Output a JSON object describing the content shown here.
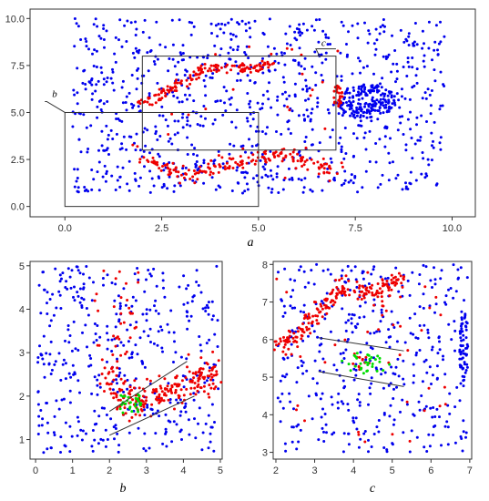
{
  "chart_data": [
    {
      "type": "scatter",
      "panel_label": "a",
      "xlim": [
        -0.9,
        10.6
      ],
      "ylim": [
        -0.55,
        10.5
      ],
      "x_ticks": [
        0.0,
        2.5,
        5.0,
        7.5,
        10.0
      ],
      "y_ticks": [
        0.0,
        2.5,
        5.0,
        7.5,
        10.0
      ],
      "x_tick_labels": [
        "0.0",
        "2.5",
        "5.0",
        "7.5",
        "10.0"
      ],
      "y_tick_labels": [
        "0.0",
        "2.5",
        "5.0",
        "7.5",
        "10.0"
      ],
      "grid": false,
      "colors": {
        "background_points": "#0000ee",
        "cluster_points": "#ee0000"
      },
      "regions": [
        {
          "label": "b",
          "x_range": [
            0,
            5
          ],
          "y_range": [
            0,
            5
          ]
        },
        {
          "label": "c",
          "x_range": [
            2,
            7
          ],
          "y_range": [
            3,
            8
          ]
        }
      ],
      "series": [
        {
          "color": "#0000ee",
          "n": 900,
          "shape": "uniform",
          "x_range": [
            0.2,
            9.8
          ],
          "y_range": [
            0.7,
            10.0
          ]
        },
        {
          "color": "#0000ee",
          "n": 170,
          "shape": "blob",
          "center": [
            7.8,
            5.6
          ],
          "radius": [
            0.75,
            0.9
          ]
        },
        {
          "color": "#ee0000",
          "n": 140,
          "shape": "curve",
          "path": [
            [
              1.8,
              5.4
            ],
            [
              2.4,
              5.8
            ],
            [
              3.0,
              6.6
            ],
            [
              3.6,
              7.3
            ],
            [
              4.2,
              7.4
            ],
            [
              4.8,
              7.3
            ],
            [
              5.3,
              7.7
            ]
          ],
          "spread": 0.15
        },
        {
          "color": "#ee0000",
          "n": 170,
          "shape": "curve",
          "path": [
            [
              1.9,
              2.5
            ],
            [
              2.5,
              2.2
            ],
            [
              3.0,
              1.8
            ],
            [
              3.6,
              1.9
            ],
            [
              4.3,
              2.3
            ],
            [
              5.0,
              2.6
            ],
            [
              5.8,
              2.7
            ],
            [
              6.5,
              2.3
            ],
            [
              6.9,
              1.8
            ]
          ],
          "spread": 0.2
        },
        {
          "color": "#ee0000",
          "n": 26,
          "shape": "blob",
          "center": [
            7.05,
            5.9
          ],
          "radius": [
            0.12,
            0.6
          ]
        },
        {
          "color": "#ee0000",
          "n": 30,
          "shape": "uniform",
          "x_range": [
            1.5,
            7.2
          ],
          "y_range": [
            1.0,
            8.5
          ]
        }
      ]
    },
    {
      "type": "scatter",
      "panel_label": "b",
      "xlim": [
        -0.15,
        5.05
      ],
      "ylim": [
        0.55,
        5.1
      ],
      "x_ticks": [
        0,
        1,
        2,
        3,
        4,
        5
      ],
      "y_ticks": [
        1,
        2,
        3,
        4,
        5
      ],
      "x_tick_labels": [
        "0",
        "1",
        "2",
        "3",
        "4",
        "5"
      ],
      "y_tick_labels": [
        "1",
        "2",
        "3",
        "4",
        "5"
      ],
      "grid": false,
      "colors": {
        "background_points": "#0000ee",
        "cluster_points": "#ee0000",
        "highlight_points": "#00dd00"
      },
      "guide_lines": [
        {
          "from": [
            2.0,
            1.65
          ],
          "to": [
            4.1,
            2.8
          ]
        },
        {
          "from": [
            2.0,
            1.1
          ],
          "to": [
            4.3,
            2.0
          ]
        }
      ],
      "series": [
        {
          "color": "#0000ee",
          "n": 420,
          "shape": "uniform",
          "x_range": [
            0.05,
            4.95
          ],
          "y_range": [
            0.7,
            5.0
          ]
        },
        {
          "color": "#ee0000",
          "n": 220,
          "shape": "curve",
          "path": [
            [
              1.9,
              2.6
            ],
            [
              2.4,
              2.0
            ],
            [
              3.0,
              1.9
            ],
            [
              3.6,
              2.1
            ],
            [
              4.3,
              2.4
            ],
            [
              4.9,
              2.5
            ]
          ],
          "spread": 0.22
        },
        {
          "color": "#ee0000",
          "n": 35,
          "shape": "uniform",
          "x_range": [
            1.6,
            2.8
          ],
          "y_range": [
            2.6,
            4.9
          ]
        },
        {
          "color": "#00dd00",
          "n": 28,
          "shape": "blob",
          "center": [
            2.6,
            1.85
          ],
          "radius": [
            0.4,
            0.3
          ]
        }
      ]
    },
    {
      "type": "scatter",
      "panel_label": "c",
      "xlim": [
        1.93,
        7.05
      ],
      "ylim": [
        2.82,
        8.08
      ],
      "x_ticks": [
        2,
        3,
        4,
        5,
        6,
        7
      ],
      "y_ticks": [
        3,
        4,
        5,
        6,
        7,
        8
      ],
      "x_tick_labels": [
        "2",
        "3",
        "4",
        "5",
        "6",
        "7"
      ],
      "y_tick_labels": [
        "3",
        "4",
        "5",
        "6",
        "7",
        "8"
      ],
      "grid": false,
      "colors": {
        "background_points": "#0000ee",
        "cluster_points": "#ee0000",
        "highlight_points": "#00dd00"
      },
      "guide_lines": [
        {
          "from": [
            3.1,
            6.05
          ],
          "to": [
            5.3,
            5.7
          ]
        },
        {
          "from": [
            3.1,
            5.15
          ],
          "to": [
            5.3,
            4.75
          ]
        }
      ],
      "series": [
        {
          "color": "#0000ee",
          "n": 420,
          "shape": "uniform",
          "x_range": [
            2.05,
            6.95
          ],
          "y_range": [
            3.0,
            8.0
          ]
        },
        {
          "color": "#0000ee",
          "n": 55,
          "shape": "blob",
          "center": [
            6.85,
            5.8
          ],
          "radius": [
            0.12,
            0.9
          ]
        },
        {
          "color": "#ee0000",
          "n": 200,
          "shape": "curve",
          "path": [
            [
              2.0,
              5.8
            ],
            [
              2.6,
              6.1
            ],
            [
              3.1,
              6.7
            ],
            [
              3.6,
              7.3
            ],
            [
              4.2,
              7.3
            ],
            [
              4.8,
              7.3
            ],
            [
              5.3,
              7.7
            ]
          ],
          "spread": 0.14
        },
        {
          "color": "#ee0000",
          "n": 45,
          "shape": "uniform",
          "x_range": [
            2.0,
            6.6
          ],
          "y_range": [
            3.0,
            7.9
          ]
        },
        {
          "color": "#ee0000",
          "n": 12,
          "shape": "blob",
          "center": [
            4.2,
            5.4
          ],
          "radius": [
            0.25,
            0.15
          ]
        },
        {
          "color": "#00dd00",
          "n": 30,
          "shape": "blob",
          "center": [
            4.3,
            5.4
          ],
          "radius": [
            0.7,
            0.3
          ]
        }
      ]
    }
  ]
}
